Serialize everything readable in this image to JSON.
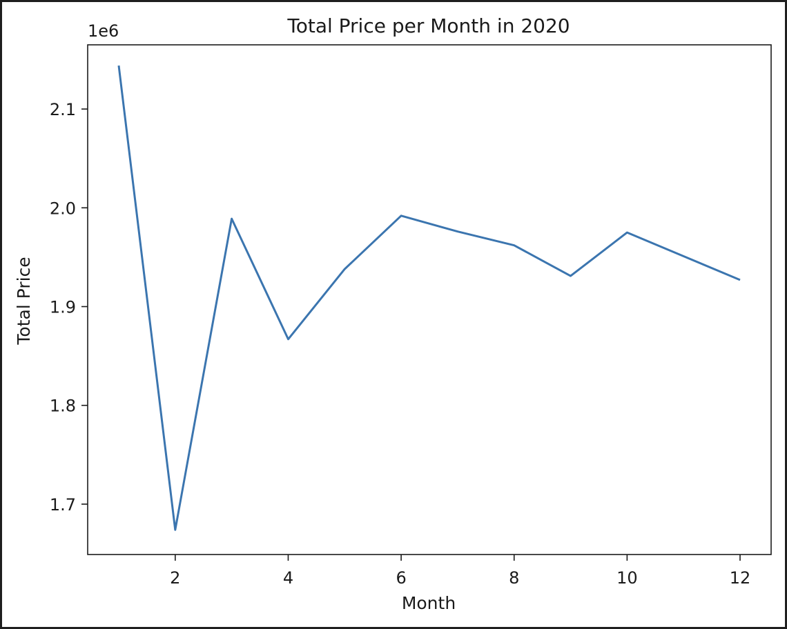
{
  "chart_data": {
    "type": "line",
    "title": "Total Price per Month in 2020",
    "xlabel": "Month",
    "ylabel": "Total Price",
    "offset_text": "1e6",
    "x_ticks": [
      2,
      4,
      6,
      8,
      10,
      12
    ],
    "y_ticks": [
      1.7,
      1.8,
      1.9,
      2.0,
      2.1
    ],
    "y_tick_labels": [
      "1.7",
      "1.8",
      "1.9",
      "2.0",
      "2.1"
    ],
    "xlim": [
      0.45,
      12.55
    ],
    "ylim": [
      1.649,
      2.165
    ],
    "grid": false,
    "line_color": "#3b75af",
    "series": [
      {
        "x": [
          1,
          2,
          3,
          4,
          5,
          6,
          7,
          8,
          9,
          10,
          11,
          12
        ],
        "values": [
          2.144,
          1.674,
          1.989,
          1.867,
          1.938,
          1.992,
          1.976,
          1.962,
          1.931,
          1.975,
          1.951,
          1.927
        ]
      }
    ]
  }
}
